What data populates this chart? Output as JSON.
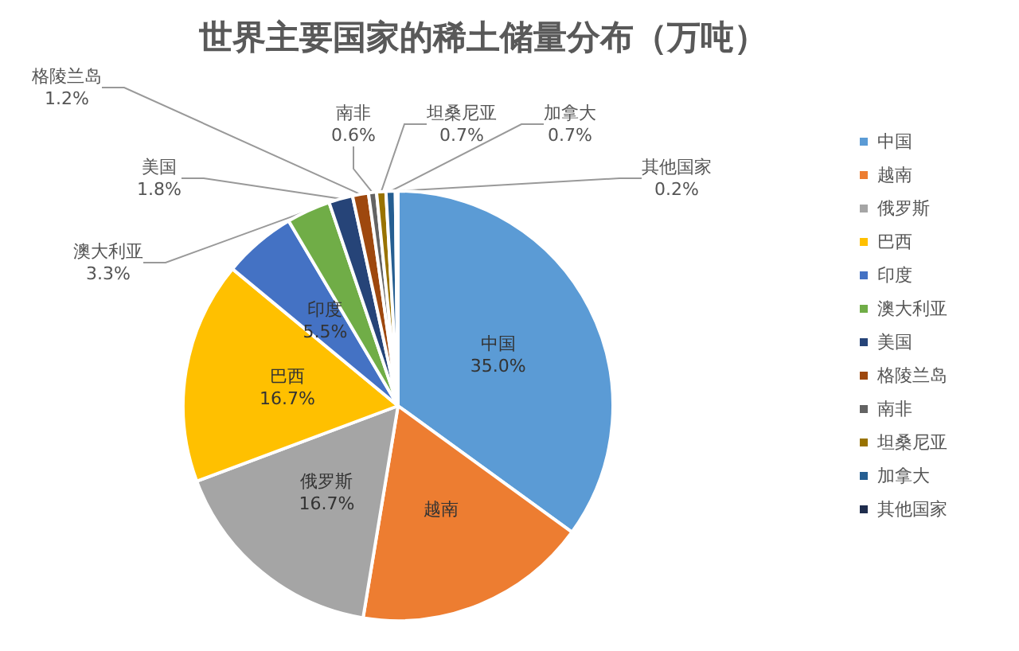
{
  "chart_data": {
    "type": "pie",
    "title": "世界主要国家的稀土储量分布（万吨）",
    "categories": [
      "中国",
      "越南",
      "俄罗斯",
      "巴西",
      "印度",
      "澳大利亚",
      "美国",
      "格陵兰岛",
      "南非",
      "坦桑尼亚",
      "加拿大",
      "其他国家"
    ],
    "values": [
      35.0,
      17.6,
      16.7,
      16.7,
      5.5,
      3.3,
      1.8,
      1.2,
      0.6,
      0.7,
      0.7,
      0.2
    ],
    "value_labels": [
      "35.0%",
      null,
      "16.7%",
      "16.7%",
      "5.5%",
      "3.3%",
      "1.8%",
      "1.2%",
      "0.6%",
      "0.7%",
      "0.7%",
      "0.2%"
    ],
    "colors": [
      "#5b9bd5",
      "#ed7d31",
      "#a5a5a5",
      "#ffc000",
      "#4472c4",
      "#70ad47",
      "#264478",
      "#9e480e",
      "#636363",
      "#997300",
      "#255e91",
      "#1f2d4d"
    ],
    "legend": "right"
  }
}
